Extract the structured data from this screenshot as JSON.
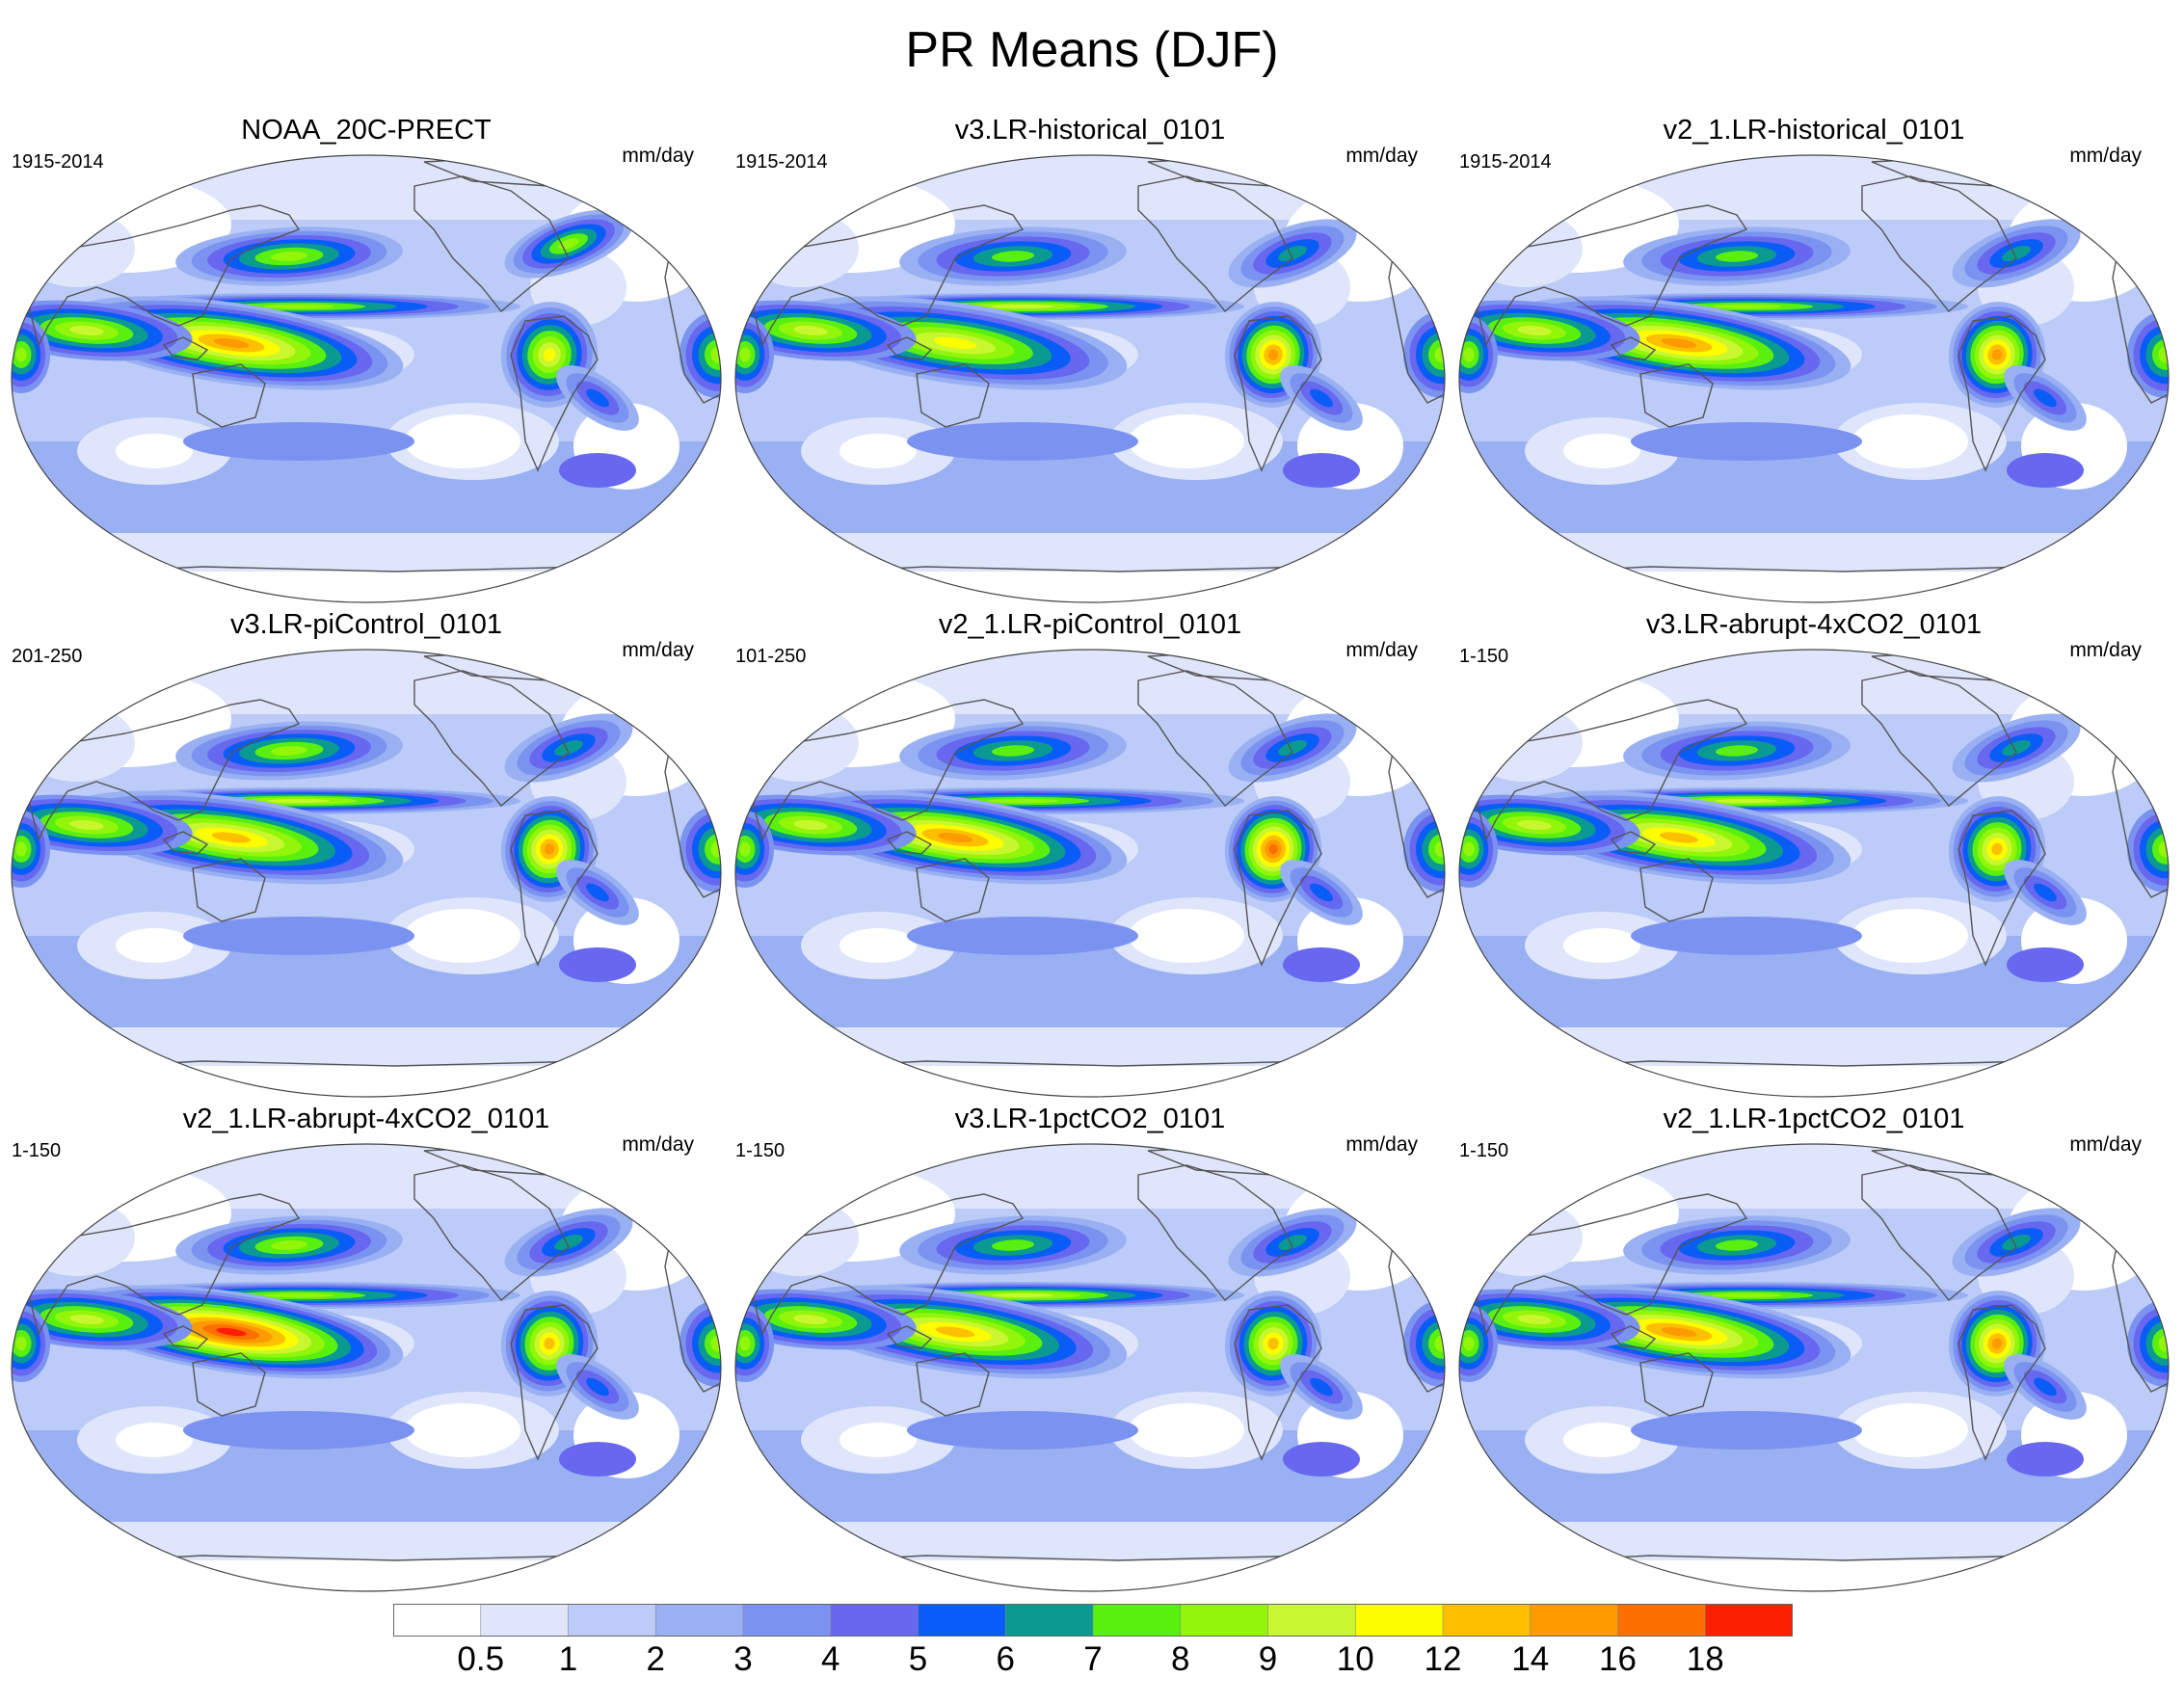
{
  "title": "PR Means (DJF)",
  "units": "mm/day",
  "panels": [
    {
      "title": "NOAA_20C-PRECT",
      "period": "1915-2014",
      "units": "mm/day",
      "variant": 0
    },
    {
      "title": "v3.LR-historical_0101",
      "period": "1915-2014",
      "units": "mm/day",
      "variant": 1
    },
    {
      "title": "v2_1.LR-historical_0101",
      "period": "1915-2014",
      "units": "mm/day",
      "variant": 2
    },
    {
      "title": "v3.LR-piControl_0101",
      "period": "201-250",
      "units": "mm/day",
      "variant": 3
    },
    {
      "title": "v2_1.LR-piControl_0101",
      "period": "101-250",
      "units": "mm/day",
      "variant": 4
    },
    {
      "title": "v3.LR-abrupt-4xCO2_0101",
      "period": "1-150",
      "units": "mm/day",
      "variant": 5
    },
    {
      "title": "v2_1.LR-abrupt-4xCO2_0101",
      "period": "1-150",
      "units": "mm/day",
      "variant": 6
    },
    {
      "title": "v3.LR-1pctCO2_0101",
      "period": "1-150",
      "units": "mm/day",
      "variant": 7
    },
    {
      "title": "v2_1.LR-1pctCO2_0101",
      "period": "1-150",
      "units": "mm/day",
      "variant": 8
    }
  ],
  "colorbar": {
    "levels": [
      "0.5",
      "1",
      "2",
      "3",
      "4",
      "5",
      "6",
      "7",
      "8",
      "9",
      "10",
      "12",
      "14",
      "16",
      "18"
    ],
    "colors": [
      "#ffffff",
      "#dfe5fb",
      "#bccbf7",
      "#99b0f3",
      "#7b93f0",
      "#6767ef",
      "#0a5cf6",
      "#0a9a92",
      "#59f010",
      "#93f50a",
      "#c8f730",
      "#fdfd00",
      "#fdc000",
      "#fd9a00",
      "#fd7000",
      "#fd2000"
    ]
  }
}
